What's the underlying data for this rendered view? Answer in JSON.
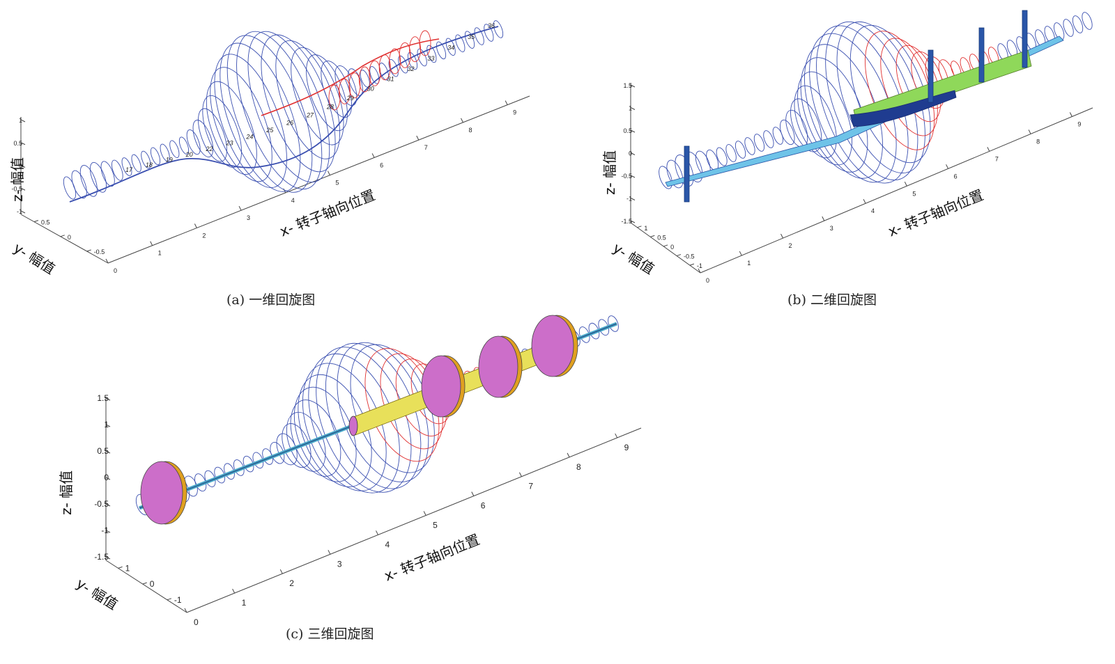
{
  "figures": [
    {
      "caption": "(a) 一维回旋图",
      "x_axis_label": "x- 转子轴向位置",
      "y_axis_label": "y- 幅值",
      "z_axis_label": "z- 幅值",
      "x_ticks": [
        "0",
        "1",
        "2",
        "3",
        "4",
        "5",
        "6",
        "7",
        "8",
        "9"
      ],
      "y_ticks": [
        "0.5",
        "0",
        "-0.5"
      ],
      "z_ticks": [
        "1",
        "0.5",
        "0",
        "-0.5",
        "-1"
      ],
      "node_labels": [
        "17",
        "18",
        "19",
        "20",
        "22",
        "23",
        "24",
        "25",
        "26",
        "27",
        "28",
        "29",
        "30",
        "31",
        "32",
        "33",
        "34",
        "35",
        "36"
      ]
    },
    {
      "caption": "(b) 二维回旋图",
      "x_axis_label": "x- 转子轴向位置",
      "y_axis_label": "y- 幅值",
      "z_axis_label": "z- 幅值",
      "x_ticks": [
        "0",
        "1",
        "2",
        "3",
        "4",
        "5",
        "6",
        "7",
        "8",
        "9"
      ],
      "y_ticks": [
        "1",
        "0.5",
        "0",
        "-0.5",
        "-1"
      ],
      "z_ticks": [
        "1.5",
        "1",
        "0.5",
        "0",
        "-0.5",
        "-1",
        "-1.5"
      ]
    },
    {
      "caption": "(c) 三维回旋图",
      "x_axis_label": "x- 转子轴向位置",
      "y_axis_label": "y- 幅值",
      "z_axis_label": "z- 幅值",
      "x_ticks": [
        "0",
        "1",
        "2",
        "3",
        "4",
        "5",
        "6",
        "7",
        "8",
        "9"
      ],
      "y_ticks": [
        "1",
        "0",
        "-1"
      ],
      "z_ticks": [
        "1.5",
        "1",
        "0.5",
        "0",
        "-0.5",
        "-1",
        "-1.5"
      ]
    }
  ],
  "chart_data": [
    {
      "type": "line",
      "title": "(a) 一维回旋图",
      "xlabel": "x- 转子轴向位置",
      "ylabel": "y- 幅值",
      "zlabel": "z- 幅值",
      "xlim": [
        0,
        9.5
      ],
      "zlim": [
        -1,
        1
      ],
      "series": [
        {
          "x": [
            0,
            0.5,
            1,
            1.5,
            2,
            2.5,
            3,
            3.5,
            4,
            4.5,
            5,
            5.5,
            6,
            6.5,
            7,
            7.5,
            8,
            8.5,
            9,
            9.5
          ],
          "z": [
            -0.6,
            -0.55,
            -0.45,
            -0.3,
            -0.15,
            -0.3,
            -0.55,
            -0.8,
            -0.9,
            -0.8,
            -0.55,
            -0.25,
            0,
            0.15,
            0.2,
            0.15,
            0.1,
            0.05,
            0.05,
            0.05
          ],
          "color": "#3a4fb0"
        },
        {
          "x": [
            4.5,
            5,
            5.5,
            6,
            6.5,
            7,
            7.5,
            8
          ],
          "z": [
            0.05,
            0.25,
            0.45,
            0.6,
            0.65,
            0.55,
            0.4,
            0.2
          ],
          "color": "#e03030"
        }
      ]
    },
    {
      "type": "line",
      "title": "(b) 二维回旋图",
      "xlabel": "x- 转子轴向位置",
      "ylabel": "y- 幅值",
      "zlabel": "z- 幅值",
      "xlim": [
        0,
        9.5
      ],
      "zlim": [
        -1.5,
        1.5
      ]
    },
    {
      "type": "line",
      "title": "(c) 三维回旋图",
      "xlabel": "x- 转子轴向位置",
      "ylabel": "y- 幅值",
      "zlabel": "z- 幅值",
      "xlim": [
        0,
        9.5
      ],
      "zlim": [
        -1.5,
        1.5
      ]
    }
  ],
  "colors": {
    "whirl_blue": "#3a4fb0",
    "whirl_red": "#e03030",
    "disk_magenta": "#cc6ec9",
    "shaft_yellow": "#e8e05a",
    "shaft_green": "#8fd85a",
    "disk_blue": "#2a56a8"
  }
}
